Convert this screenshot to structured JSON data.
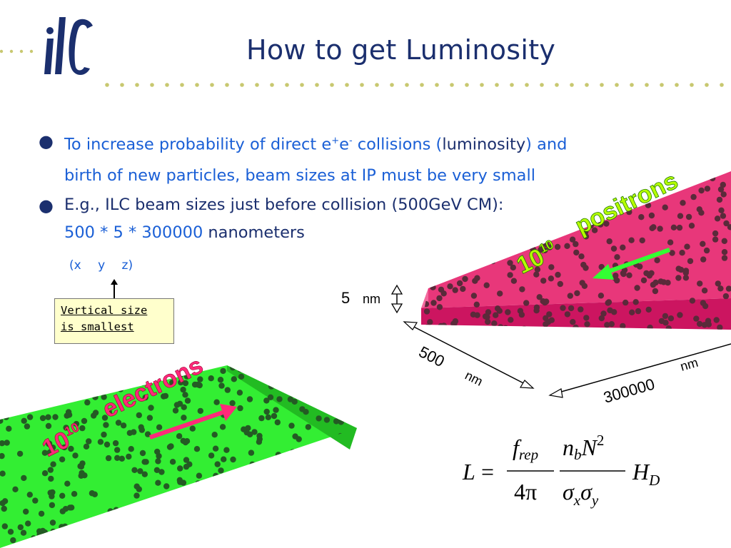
{
  "logo": {
    "text": "ilc"
  },
  "title": "How to get Luminosity",
  "bullets": {
    "b1": {
      "pre": "To increase probability of direct e",
      "sup1": "+",
      "mid": "e",
      "sup2": "-",
      "post": " collisions (",
      "emph": "luminosity",
      "post2": ") and",
      "line2": "birth of new particles, beam sizes at IP must be very small"
    },
    "b2": {
      "line1": "E.g., ILC beam sizes just before collision (500GeV CM):",
      "line2_values": "500 * 5 * 300000",
      "line2_unit": " nanometers"
    }
  },
  "coords": "(x y z)",
  "note": {
    "line1": "Vertical size",
    "line2": "is smallest"
  },
  "beams": {
    "positrons": {
      "count": "10",
      "exp": "10",
      "label": "positrons",
      "color": "#e8105a"
    },
    "electrons": {
      "count": "10",
      "exp": "10",
      "label": "electrons",
      "color": "#22dd22"
    }
  },
  "dimensions": {
    "vertical": {
      "value": "5",
      "unit": "nm"
    },
    "horizontal": {
      "value": "500",
      "unit": "nm"
    },
    "longitudinal": {
      "value": "300000",
      "unit": "nm"
    }
  },
  "formula": {
    "lhs": "L",
    "eq": "=",
    "f": "f",
    "rep": "rep",
    "four_pi": "4π",
    "n": "n",
    "b": "b",
    "N": "N",
    "two": "2",
    "sigma": "σ",
    "x": "x",
    "y": "y",
    "H": "H",
    "D": "D"
  },
  "colors": {
    "title": "#1b2f6e",
    "accent_blue": "#1a5fd6",
    "dots": "#c8c870",
    "logo": "#1b2f6e"
  }
}
